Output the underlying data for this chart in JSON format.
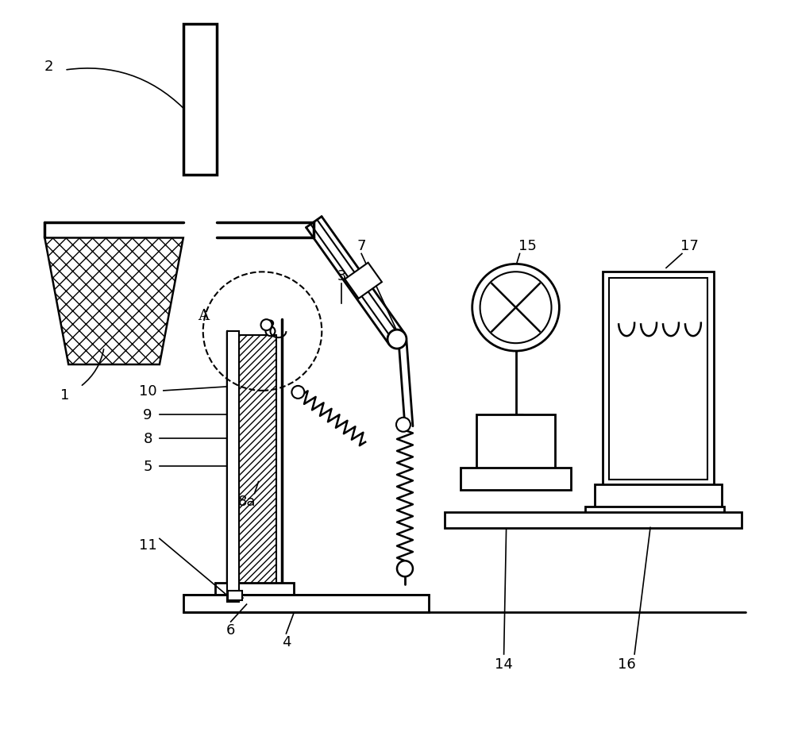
{
  "bg_color": "#ffffff",
  "line_color": "#000000",
  "fig_width": 10.0,
  "fig_height": 9.28,
  "lw_main": 2.0,
  "lw_thin": 1.5
}
